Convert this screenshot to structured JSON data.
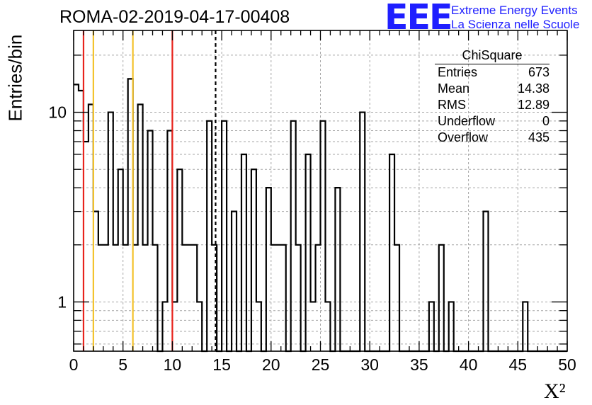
{
  "title": "ROMA-02-2019-04-17-00408",
  "logo": {
    "mark": "EEE",
    "line1": "Extreme Energy Events",
    "line2": "La Scienza nelle Scuole",
    "color": "#1f1fff"
  },
  "stats": {
    "title": "ChiSquare",
    "rows": [
      {
        "label": "Entries",
        "value": "673"
      },
      {
        "label": "Mean",
        "value": "14.38"
      },
      {
        "label": "RMS",
        "value": "12.89"
      },
      {
        "label": "Underflow",
        "value": "0"
      },
      {
        "label": "Overflow",
        "value": "435"
      }
    ]
  },
  "chart_data": {
    "type": "bar",
    "histogram_style": "step",
    "xlabel": "X²",
    "ylabel": "Entries/bin",
    "xlim": [
      0,
      50
    ],
    "ylim": [
      0.55,
      27
    ],
    "yscale": "log",
    "bin_width": 0.5,
    "bin_start": 0,
    "x_ticks": [
      0,
      5,
      10,
      15,
      20,
      25,
      30,
      35,
      40,
      45,
      50
    ],
    "y_tick_labels": [
      1,
      10
    ],
    "grid": true,
    "values": [
      14,
      13,
      7,
      11,
      3,
      2,
      2,
      10,
      2,
      5,
      2,
      15,
      2,
      11,
      2,
      8,
      2,
      0,
      1,
      8,
      1,
      5,
      2,
      2,
      2,
      1,
      0,
      9,
      2,
      0,
      9,
      0,
      3,
      0,
      6,
      0,
      5,
      1,
      0,
      4,
      2,
      2,
      2,
      0,
      9,
      2,
      0,
      6,
      1,
      2,
      9,
      1,
      0,
      4,
      0,
      0,
      0,
      0,
      10,
      0,
      0,
      0,
      0,
      0,
      6,
      2,
      0,
      0,
      0,
      0,
      0,
      0,
      1,
      0,
      2,
      0,
      1,
      0,
      0,
      0,
      0,
      0,
      0,
      3,
      0,
      0,
      0,
      0,
      0,
      0,
      0,
      1,
      0,
      0,
      0,
      0,
      0,
      0,
      0,
      0
    ],
    "vlines": [
      {
        "x": 1,
        "color": "#e8231c"
      },
      {
        "x": 2,
        "color": "#f3c22b"
      },
      {
        "x": 6,
        "color": "#f3c22b"
      },
      {
        "x": 10,
        "color": "#e8231c"
      },
      {
        "x": 14.38,
        "color": "#000000",
        "style": "dashed"
      }
    ]
  }
}
